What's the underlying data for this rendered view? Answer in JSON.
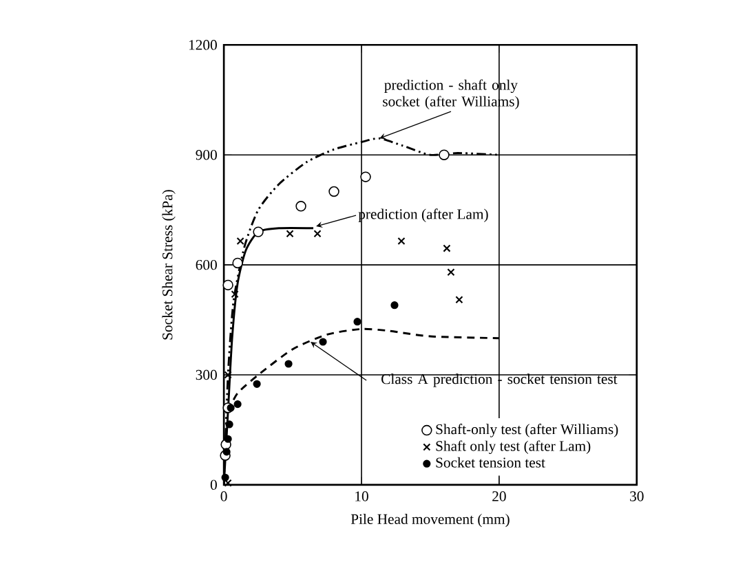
{
  "chart_data": {
    "type": "scatter",
    "xlabel": "Pile Head movement (mm)",
    "ylabel": "Socket Shear Stress (kPa)",
    "xlim": [
      0,
      30
    ],
    "ylim": [
      0,
      1200
    ],
    "xticks": [
      0,
      10,
      20,
      30
    ],
    "yticks": [
      0,
      300,
      600,
      900,
      1200
    ],
    "grid": true,
    "legend": "bottom right",
    "series": [
      {
        "name": "Shaft-only test (after Williams)",
        "type": "scatter",
        "marker": "circle",
        "color": "#000000",
        "x": [
          0.1,
          0.15,
          0.3,
          0.3,
          1.0,
          2.5,
          5.6,
          8,
          10.3,
          16
        ],
        "values": [
          80,
          110,
          210,
          545,
          605,
          690,
          760,
          800,
          840,
          900
        ]
      },
      {
        "name": "Shaft only test (after Lam)",
        "type": "scatter",
        "marker": "cross",
        "color": "#000000",
        "x": [
          0.3,
          0.3,
          0.8,
          1.2,
          4.8,
          6.8,
          12.9,
          16.2,
          16.5,
          17.1
        ],
        "values": [
          5,
          300,
          520,
          665,
          685,
          685,
          665,
          645,
          580,
          505
        ]
      },
      {
        "name": "Socket tension test",
        "type": "scatter",
        "marker": "circle",
        "color": "#000000",
        "x": [
          0.1,
          0.2,
          0.3,
          0.4,
          0.5,
          1.0,
          2.4,
          4.7,
          7.2,
          9.7,
          12.4
        ],
        "values": [
          20,
          90,
          125,
          165,
          210,
          220,
          275,
          330,
          390,
          445,
          490
        ]
      },
      {
        "type": "line",
        "marker": "none",
        "line_style": "dashdotted",
        "color": "#000000",
        "x": [
          0,
          0.3,
          0.7,
          1.5,
          2.5,
          4,
          6,
          8,
          10,
          11.3,
          13,
          15,
          17,
          20
        ],
        "values": [
          0,
          300,
          500,
          650,
          750,
          820,
          880,
          915,
          935,
          945,
          925,
          900,
          905,
          900
        ]
      },
      {
        "type": "line",
        "marker": "none",
        "line_style": "solid",
        "color": "#000000",
        "x": [
          0,
          0.3,
          0.6,
          1,
          1.6,
          2.5,
          4,
          6.5
        ],
        "values": [
          0,
          200,
          400,
          550,
          640,
          690,
          700,
          700
        ]
      },
      {
        "type": "line",
        "marker": "none",
        "line_style": "dashed",
        "color": "#000000",
        "x": [
          0.3,
          1,
          2.5,
          5,
          7.5,
          10,
          12,
          15,
          20
        ],
        "values": [
          200,
          250,
          300,
          370,
          410,
          425,
          420,
          405,
          400
        ]
      }
    ],
    "annotations": [
      {
        "text": "prediction - shaft only socket (after Williams)",
        "x": 11.3,
        "y": 945
      },
      {
        "text": "prediction (after Lam)",
        "x": 6.7,
        "y": 705
      },
      {
        "text": "Class A prediction - socket tension test",
        "x": 6.3,
        "y": 390
      }
    ]
  }
}
